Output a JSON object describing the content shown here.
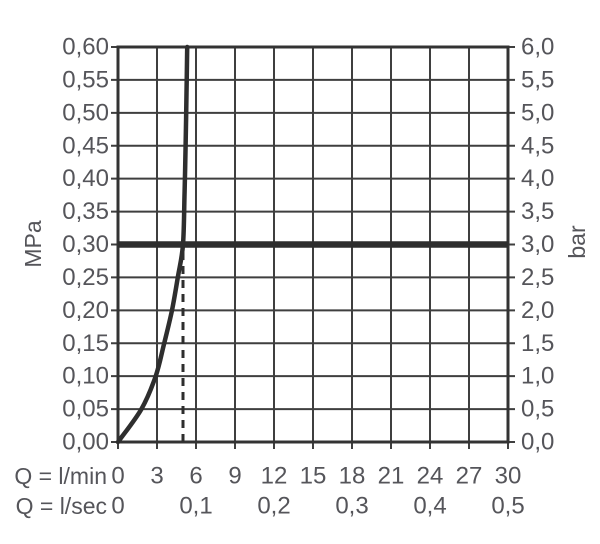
{
  "chart_data": {
    "type": "line",
    "title": "",
    "grid": true,
    "y_axis_left": {
      "label": "MPa",
      "min": 0,
      "max": 0.6,
      "step": 0.05,
      "tick_labels": [
        "0,60",
        "0,55",
        "0,50",
        "0,45",
        "0,40",
        "0,35",
        "0,30",
        "0,25",
        "0,20",
        "0,15",
        "0,10",
        "0,05",
        "0,00"
      ]
    },
    "y_axis_right": {
      "label": "bar",
      "min": 0,
      "max": 6,
      "step": 0.5,
      "tick_labels": [
        "6,0",
        "5,5",
        "5,0",
        "4,5",
        "4,0",
        "3,5",
        "3,0",
        "2,5",
        "2,0",
        "1,5",
        "1,0",
        "0,5",
        "0,0"
      ]
    },
    "x_axis_lmin": {
      "label": "Q = l/min",
      "min": 0,
      "max": 30,
      "step": 3,
      "tick_labels": [
        "0",
        "3",
        "6",
        "9",
        "12",
        "15",
        "18",
        "21",
        "24",
        "27",
        "30"
      ]
    },
    "x_axis_lsec": {
      "label": "Q = l/sec",
      "ticks": [
        {
          "label": "0",
          "at_lmin": 0
        },
        {
          "label": "0,1",
          "at_lmin": 6
        },
        {
          "label": "0,2",
          "at_lmin": 12
        },
        {
          "label": "0,3",
          "at_lmin": 18
        },
        {
          "label": "0,4",
          "at_lmin": 24
        },
        {
          "label": "0,5",
          "at_lmin": 30
        }
      ]
    },
    "reference_line": {
      "mpa": 0.3,
      "bar": 3.0,
      "style": "thick-solid"
    },
    "dashed_marker": {
      "lmin": 5.0,
      "from_mpa": 0,
      "to_mpa": 0.3
    },
    "series": [
      {
        "name": "flow-pressure-curve",
        "points_lmin_mpa": [
          [
            0,
            0
          ],
          [
            1.8,
            0.05
          ],
          [
            2.9,
            0.1
          ],
          [
            3.55,
            0.15
          ],
          [
            4.15,
            0.2
          ],
          [
            4.6,
            0.25
          ],
          [
            5.0,
            0.3
          ],
          [
            5.12,
            0.38
          ],
          [
            5.2,
            0.45
          ],
          [
            5.27,
            0.53
          ],
          [
            5.32,
            0.6
          ]
        ]
      }
    ],
    "colors": {
      "grid": "#3f3f3f",
      "frame": "#333333",
      "curve": "#2e2e2e",
      "reference": "#2e2e2e",
      "dashed": "#2e2e2e",
      "text": "#55555a"
    }
  }
}
